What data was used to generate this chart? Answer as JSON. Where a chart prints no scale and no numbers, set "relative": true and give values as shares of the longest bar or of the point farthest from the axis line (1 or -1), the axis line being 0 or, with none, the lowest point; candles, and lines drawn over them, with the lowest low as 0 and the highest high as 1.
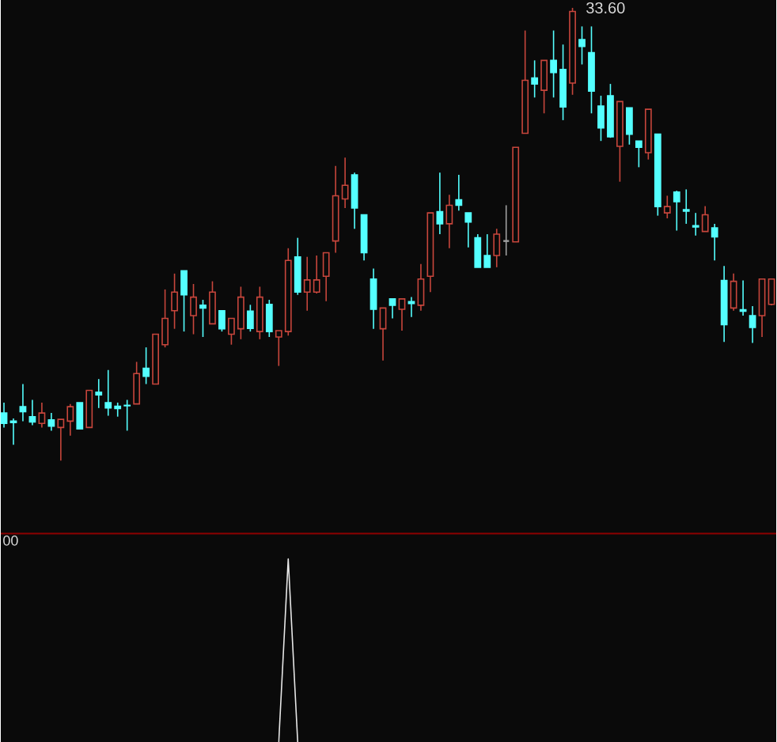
{
  "chart_data": [
    {
      "type": "candlestick",
      "relative": true,
      "categories": [
        null,
        null,
        null,
        null,
        null,
        null,
        null,
        null,
        null,
        null,
        null,
        null,
        null,
        null,
        null,
        null,
        null,
        null,
        null,
        null,
        null,
        null,
        null,
        null,
        null,
        null,
        null,
        null,
        null,
        null,
        null,
        null,
        null,
        null,
        null,
        null,
        null,
        null,
        null,
        null,
        null,
        null,
        null,
        null,
        null,
        null,
        null,
        null,
        null,
        null,
        null,
        null,
        null,
        null,
        null,
        null,
        null,
        null,
        null,
        null,
        null,
        null,
        null,
        null,
        null,
        null,
        null,
        null,
        null,
        null,
        null,
        null,
        null,
        null,
        null,
        null,
        null,
        null,
        null,
        null,
        null,
        null
      ],
      "ohlc": [
        [
          0.105,
          0.128,
          0.073,
          0.082
        ],
        [
          0.087,
          0.093,
          0.035,
          0.084
        ],
        [
          0.119,
          0.169,
          0.087,
          0.108
        ],
        [
          0.097,
          0.134,
          0.078,
          0.085
        ],
        [
          0.082,
          0.128,
          0.073,
          0.105
        ],
        [
          0.09,
          0.105,
          0.066,
          0.076
        ],
        [
          0.073,
          0.091,
          0,
          0.091
        ],
        [
          0.087,
          0.125,
          0.055,
          0.119
        ],
        [
          0.128,
          0.128,
          0.069,
          0.07
        ],
        [
          0.073,
          0.155,
          0.072,
          0.155
        ],
        [
          0.151,
          0.18,
          0.116,
          0.145
        ],
        [
          0.128,
          0.2,
          0.099,
          0.116
        ],
        [
          0.12,
          0.128,
          0.097,
          0.115
        ],
        [
          0.122,
          0.134,
          0.066,
          0.121
        ],
        [
          0.125,
          0.218,
          0.125,
          0.192
        ],
        [
          0.204,
          0.25,
          0.169,
          0.186
        ],
        [
          0.169,
          0.279,
          0.169,
          0.279
        ],
        [
          0.256,
          0.378,
          0.25,
          0.314
        ],
        [
          0.331,
          0.413,
          0.291,
          0.372
        ],
        [
          0.419,
          0.419,
          0.285,
          0.366
        ],
        [
          0.32,
          0.39,
          0.279,
          0.361
        ],
        [
          0.343,
          0.355,
          0.273,
          0.337
        ],
        [
          0.302,
          0.396,
          0.302,
          0.372
        ],
        [
          0.331,
          0.331,
          0.285,
          0.291
        ],
        [
          0.279,
          0.314,
          0.256,
          0.314
        ],
        [
          0.291,
          0.384,
          0.268,
          0.361
        ],
        [
          0.33,
          0.344,
          0.285,
          0.292
        ],
        [
          0.285,
          0.384,
          0.268,
          0.361
        ],
        [
          0.345,
          0.355,
          0.273,
          0.285
        ],
        [
          0.273,
          0.287,
          0.209,
          0.287
        ],
        [
          0.285,
          0.469,
          0.276,
          0.442
        ],
        [
          0.45,
          0.492,
          0.366,
          0.372
        ],
        [
          0.372,
          0.45,
          0.331,
          0.399
        ],
        [
          0.372,
          0.453,
          0.369,
          0.399
        ],
        [
          0.407,
          0.459,
          0.352,
          0.459
        ],
        [
          0.485,
          0.651,
          0.459,
          0.585
        ],
        [
          0.578,
          0.669,
          0.558,
          0.608
        ],
        [
          0.631,
          0.636,
          0.512,
          0.558
        ],
        [
          0.543,
          0.543,
          0.442,
          0.459
        ],
        [
          0.401,
          0.424,
          0.291,
          0.334
        ],
        [
          0.291,
          0.337,
          0.221,
          0.337
        ],
        [
          0.357,
          0.357,
          0.314,
          0.343
        ],
        [
          0.334,
          0.357,
          0.287,
          0.357
        ],
        [
          0.351,
          0.361,
          0.317,
          0.347
        ],
        [
          0.343,
          0.434,
          0.331,
          0.401
        ],
        [
          0.407,
          0.547,
          0.372,
          0.547
        ],
        [
          0.55,
          0.636,
          0.5,
          0.523
        ],
        [
          0.523,
          0.587,
          0.469,
          0.564
        ],
        [
          0.576,
          0.631,
          0.552,
          0.564
        ],
        [
          0.547,
          0.547,
          0.471,
          0.527
        ],
        [
          0.492,
          0.5,
          0.427,
          0.427
        ],
        [
          0.453,
          0.5,
          0.427,
          0.427
        ],
        [
          0.453,
          0.512,
          0.427,
          0.5
        ],
        [
          0.485,
          0.564,
          0.453,
          0.485
        ],
        [
          0.483,
          0.692,
          0.483,
          0.692
        ],
        [
          0.723,
          0.95,
          0.723,
          0.84
        ],
        [
          0.845,
          0.884,
          0.802,
          0.832
        ],
        [
          0.818,
          0.884,
          0.767,
          0.884
        ],
        [
          0.884,
          0.95,
          0.802,
          0.857
        ],
        [
          0.864,
          0.919,
          0.752,
          0.781
        ],
        [
          0.834,
          1,
          0.808,
          0.992
        ],
        [
          0.93,
          0.959,
          0.875,
          0.915
        ],
        [
          0.901,
          0.959,
          0.767,
          0.816
        ],
        [
          0.783,
          0.806,
          0.706,
          0.735
        ],
        [
          0.806,
          0.832,
          0.713,
          0.715
        ],
        [
          0.694,
          0.793,
          0.616,
          0.793
        ],
        [
          0.779,
          0.779,
          0.698,
          0.721
        ],
        [
          0.706,
          0.706,
          0.648,
          0.692
        ],
        [
          0.68,
          0.776,
          0.665,
          0.776
        ],
        [
          0.721,
          0.721,
          0.541,
          0.561
        ],
        [
          0.547,
          0.585,
          0.535,
          0.561
        ],
        [
          0.593,
          0.596,
          0.508,
          0.572
        ],
        [
          0.554,
          0.599,
          0.523,
          0.551
        ],
        [
          0.519,
          0.547,
          0.497,
          0.516
        ],
        [
          0.506,
          0.562,
          0.506,
          0.543
        ],
        [
          0.514,
          0.523,
          0.442,
          0.494
        ],
        [
          0.398,
          0.43,
          0.262,
          0.3
        ],
        [
          0.337,
          0.413,
          0.331,
          0.396
        ],
        [
          0.333,
          0.398,
          0.32,
          0.33
        ],
        [
          0.32,
          0.341,
          0.26,
          0.294
        ],
        [
          0.32,
          0.401,
          0.273,
          0.401
        ],
        [
          0.345,
          0.401,
          0.343,
          0.401
        ]
      ],
      "colors": [
        "#54ffff",
        "#54ffff",
        "#54ffff",
        "#54ffff",
        "#c8463c",
        "#54ffff",
        "#c8463c",
        "#c8463c",
        "#54ffff",
        "#c8463c",
        "#54ffff",
        "#54ffff",
        "#54ffff",
        "#54ffff",
        "#c8463c",
        "#54ffff",
        "#c8463c",
        "#c8463c",
        "#c8463c",
        "#54ffff",
        "#c8463c",
        "#54ffff",
        "#c8463c",
        "#54ffff",
        "#c8463c",
        "#c8463c",
        "#54ffff",
        "#c8463c",
        "#54ffff",
        "#c8463c",
        "#c8463c",
        "#54ffff",
        "#c8463c",
        "#c8463c",
        "#c8463c",
        "#c8463c",
        "#c8463c",
        "#54ffff",
        "#54ffff",
        "#54ffff",
        "#c8463c",
        "#54ffff",
        "#c8463c",
        "#54ffff",
        "#c8463c",
        "#c8463c",
        "#54ffff",
        "#c8463c",
        "#54ffff",
        "#54ffff",
        "#54ffff",
        "#54ffff",
        "#c8463c",
        "#a0a0a0",
        "#c8463c",
        "#c8463c",
        "#54ffff",
        "#c8463c",
        "#54ffff",
        "#54ffff",
        "#c8463c",
        "#54ffff",
        "#54ffff",
        "#54ffff",
        "#54ffff",
        "#c8463c",
        "#54ffff",
        "#54ffff",
        "#c8463c",
        "#54ffff",
        "#c8463c",
        "#54ffff",
        "#54ffff",
        "#54ffff",
        "#c8463c",
        "#54ffff",
        "#54ffff",
        "#c8463c",
        "#54ffff",
        "#54ffff",
        "#c8463c",
        "#c8463c"
      ],
      "annotations": [
        "33.60"
      ]
    },
    {
      "type": "line",
      "relative": true,
      "categories": [
        null,
        null,
        null,
        null,
        null,
        null,
        null,
        null,
        null,
        null,
        null,
        null,
        null,
        null,
        null,
        null,
        null,
        null,
        null,
        null,
        null,
        null,
        null,
        null,
        null,
        null,
        null,
        null,
        null,
        null,
        null,
        null,
        null,
        null,
        null,
        null,
        null,
        null,
        null,
        null,
        null,
        null,
        null,
        null,
        null,
        null,
        null,
        null,
        null,
        null,
        null,
        null,
        null,
        null,
        null,
        null,
        null,
        null,
        null,
        null,
        null,
        null,
        null,
        null,
        null,
        null,
        null,
        null,
        null,
        null,
        null,
        null,
        null,
        null,
        null,
        null,
        null,
        null,
        null,
        null,
        null,
        null
      ],
      "values": [
        null,
        null,
        null,
        null,
        null,
        null,
        null,
        null,
        null,
        null,
        null,
        null,
        null,
        null,
        null,
        null,
        null,
        null,
        null,
        null,
        null,
        null,
        null,
        null,
        null,
        null,
        null,
        null,
        null,
        0,
        1,
        0,
        null,
        null,
        null,
        null,
        null,
        null,
        null,
        null,
        null,
        null,
        null,
        null,
        null,
        null,
        null,
        null,
        null,
        null,
        null,
        null,
        null,
        null,
        null,
        null,
        null,
        null,
        null,
        null,
        null,
        null,
        null,
        null,
        null,
        null,
        null,
        null,
        null,
        null,
        null,
        null,
        null,
        null,
        null,
        null,
        null,
        null,
        null,
        null,
        null,
        null
      ],
      "color": "#e8e8e8",
      "annotations": [
        "00"
      ]
    }
  ]
}
